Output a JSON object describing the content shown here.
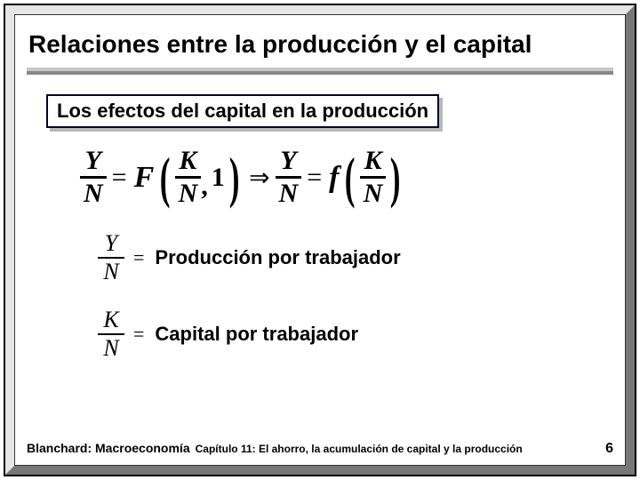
{
  "colors": {
    "frame_light": "#e6e6e6",
    "frame_dark": "#777777",
    "rule_top": "#c8c8c8",
    "rule_bottom": "#888888",
    "subtitle_border": "#000033",
    "subtitle_shadow": "#b8b8b8",
    "text": "#000000",
    "background": "#ffffff"
  },
  "title": "Relaciones entre la producción y el capital",
  "subtitle": "Los efectos del capital en la producción",
  "equation": {
    "lhs_num": "Y",
    "lhs_den": "N",
    "eq1": "=",
    "F": "F",
    "arg1_num": "K",
    "arg1_den": "N",
    "comma": ",",
    "one": "1",
    "implies": "⇒",
    "rhs_num": "Y",
    "rhs_den": "N",
    "eq2": "=",
    "f": "f",
    "arg2_num": "K",
    "arg2_den": "N"
  },
  "defs": [
    {
      "num": "Y",
      "den": "N",
      "eq": "=",
      "text": "Producción por trabajador"
    },
    {
      "num": "K",
      "den": "N",
      "eq": "=",
      "text": "Capital por trabajador"
    }
  ],
  "footer": {
    "book": "Blanchard: Macroeconomía",
    "chapter": "Capítulo 11: El ahorro, la acumulación de capital y la producción",
    "page": "6"
  }
}
